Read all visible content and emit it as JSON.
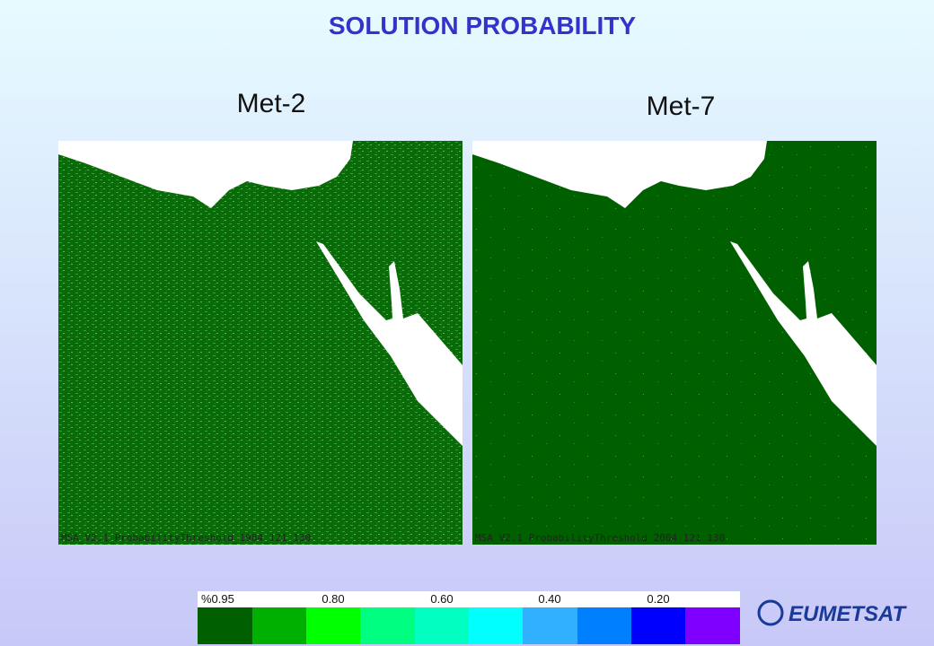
{
  "title": "SOLUTION PROBABILITY",
  "panels": [
    {
      "label": "Met-2",
      "caption": "MSA_V2.1_ProbabilityThreshold_1984_121_130"
    },
    {
      "label": "Met-7",
      "caption": "MSA_V2.1_ProbabilityThreshold_2004_121_130"
    }
  ],
  "colorbar": {
    "labels": [
      "%0.95",
      "0.80",
      "0.60",
      "0.40",
      "0.20"
    ]
  },
  "logo": "EUMETSAT"
}
